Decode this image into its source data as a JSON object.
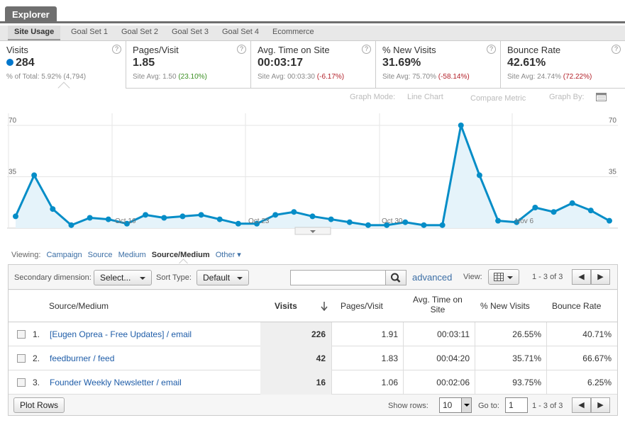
{
  "header": {
    "explorer_tab": "Explorer"
  },
  "subtabs": [
    "Site Usage",
    "Goal Set 1",
    "Goal Set 2",
    "Goal Set 3",
    "Goal Set 4",
    "Ecommerce"
  ],
  "metrics": [
    {
      "name": "Visits",
      "value": "284",
      "sub_prefix": "% of Total: ",
      "sub_value": "5.92% (4,794)",
      "sub_class": ""
    },
    {
      "name": "Pages/Visit",
      "value": "1.85",
      "sub_prefix": "Site Avg: 1.50 ",
      "sub_value": "(23.10%)",
      "sub_class": "pos"
    },
    {
      "name": "Avg. Time on Site",
      "value": "00:03:17",
      "sub_prefix": "Site Avg: 00:03:30 ",
      "sub_value": "(-6.17%)",
      "sub_class": "neg"
    },
    {
      "name": "% New Visits",
      "value": "31.69%",
      "sub_prefix": "Site Avg: 75.70% ",
      "sub_value": "(-58.14%)",
      "sub_class": "neg"
    },
    {
      "name": "Bounce Rate",
      "value": "42.61%",
      "sub_prefix": "Site Avg: 24.74% ",
      "sub_value": "(72.22%)",
      "sub_class": "neg"
    }
  ],
  "help_icon": "?",
  "graph_options": {
    "mode_label": "Graph Mode:",
    "mode_value": "Line Chart",
    "compare": "Compare Metric",
    "graph_by": "Graph By:"
  },
  "chart_data": {
    "type": "area",
    "y_ticks": [
      "70",
      "35"
    ],
    "x_labels": [
      "Oct 16",
      "Oct 23",
      "Oct 30",
      "Nov 6"
    ],
    "ylim": [
      0,
      70
    ],
    "values": [
      8,
      36,
      13,
      2,
      7,
      6,
      3,
      9,
      7,
      8,
      9,
      6,
      3,
      3,
      9,
      11,
      8,
      6,
      4,
      2,
      2,
      4,
      2,
      2,
      70,
      36,
      5,
      4,
      14,
      11,
      17,
      12,
      5
    ],
    "color": "#058dc7",
    "fill": "#e5f3fa"
  },
  "viewing": {
    "label": "Viewing:",
    "options": [
      "Campaign",
      "Source",
      "Medium"
    ],
    "current": "Source/Medium",
    "other": "Other"
  },
  "toolbar": {
    "secondary_label": "Secondary dimension:",
    "secondary_value": "Select...",
    "sort_label": "Sort Type:",
    "sort_value": "Default",
    "search_value": "",
    "advanced": "advanced",
    "view_label": "View:",
    "range": "1 - 3 of 3"
  },
  "table": {
    "headers": {
      "dim": "Source/Medium",
      "visits": "Visits",
      "ppv": "Pages/Visit",
      "time_1": "Avg. Time on",
      "time_2": "Site",
      "new": "% New Visits",
      "bounce": "Bounce Rate"
    },
    "rows": [
      {
        "idx": "1.",
        "src": "[Eugen Oprea - Free Updates] / email",
        "visits": "226",
        "ppv": "1.91",
        "time": "00:03:11",
        "new": "26.55%",
        "bounce": "40.71%"
      },
      {
        "idx": "2.",
        "src": "feedburner / feed",
        "visits": "42",
        "ppv": "1.83",
        "time": "00:04:20",
        "new": "35.71%",
        "bounce": "66.67%"
      },
      {
        "idx": "3.",
        "src": "Founder Weekly Newsletter / email",
        "visits": "16",
        "ppv": "1.06",
        "time": "00:02:06",
        "new": "93.75%",
        "bounce": "6.25%"
      }
    ]
  },
  "footer": {
    "plot_rows": "Plot Rows",
    "show_rows_label": "Show rows:",
    "show_rows_value": "10",
    "goto_label": "Go to:",
    "goto_value": "1",
    "range": "1 - 3 of 3"
  }
}
